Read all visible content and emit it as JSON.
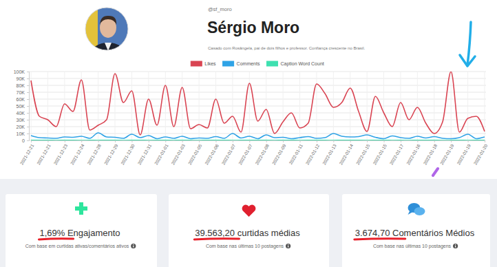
{
  "profile": {
    "handle": "@sf_moro",
    "name": "Sérgio Moro",
    "bio": "Casado com Rosângela, pai de dois filhos e professor. Confiança crescente no Brasil."
  },
  "chart_data": {
    "type": "line",
    "categories": [
      "2021-12-21",
      null,
      "2021-12-21",
      null,
      "2021-12-23",
      null,
      "2021-12-24",
      null,
      "2021-12-28",
      null,
      "2021-12-29",
      null,
      "2021-12-30",
      null,
      "2021-12-31",
      null,
      "2022-01-01",
      null,
      "2022-01-03",
      null,
      "2022-01-05",
      null,
      "2022-01-06",
      null,
      "2022-01-07",
      null,
      "2022-01-07",
      null,
      "2022-01-08",
      null,
      "2022-01-09",
      null,
      "2022-01-11",
      null,
      "2022-01-12",
      null,
      "2022-01-13",
      null,
      "2022-01-14",
      null,
      "2022-01-15",
      null,
      "2022-01-15",
      null,
      "2022-01-17",
      null,
      "2022-01-16",
      null,
      "2022-01-18",
      null,
      "2022-01-19",
      null,
      "2022-01-19",
      null,
      "2022-01-20"
    ],
    "series": [
      {
        "name": "Likes",
        "color": "#d94452",
        "values": [
          87000,
          35000,
          30000,
          20000,
          53000,
          42000,
          88000,
          15000,
          22000,
          30000,
          97000,
          55000,
          72000,
          8000,
          60000,
          22000,
          80000,
          20000,
          77000,
          17000,
          23000,
          18000,
          60000,
          25000,
          35000,
          12000,
          83000,
          28000,
          45000,
          10000,
          27000,
          40000,
          18000,
          25000,
          82000,
          68000,
          48000,
          55000,
          76000,
          42000,
          13000,
          64000,
          40000,
          20000,
          55000,
          30000,
          48000,
          25000,
          10000,
          27000,
          100000,
          12000,
          32000,
          35000,
          13000
        ]
      },
      {
        "name": "Comments",
        "color": "#2fa3e6",
        "values": [
          7000,
          4000,
          3500,
          3000,
          5000,
          4500,
          6000,
          3000,
          11000,
          5000,
          4500,
          3000,
          9000,
          4000,
          7000,
          2500,
          5000,
          3000,
          6000,
          2500,
          3500,
          3000,
          5500,
          3000,
          10000,
          3500,
          6000,
          2500,
          8000,
          4000,
          4500,
          2500,
          4000,
          5500,
          3000,
          4000,
          10000,
          6000,
          5000,
          5500,
          8000,
          4500,
          2500,
          6500,
          4000,
          3000,
          6000,
          3500,
          5500,
          3000,
          2500,
          4000,
          9000,
          2500,
          5000
        ]
      },
      {
        "name": "Caption Word Count",
        "color": "#3ee0b0",
        "values": [
          120,
          80,
          150,
          60,
          200,
          90,
          40,
          110,
          70,
          180,
          130,
          60,
          90,
          150,
          50,
          100,
          210,
          70,
          140,
          80,
          60,
          120,
          90,
          170,
          40,
          110,
          80,
          130,
          100,
          60,
          150,
          90,
          70,
          120,
          200,
          80,
          50,
          140,
          110,
          90,
          60,
          130,
          180,
          70,
          100,
          40,
          120,
          90,
          150,
          60,
          80,
          110,
          70,
          130,
          90
        ]
      }
    ],
    "ylim": [
      0,
      100000
    ],
    "yticks": [
      0,
      {
        "value": 10000,
        "label": "10K"
      },
      {
        "value": 20000,
        "label": "20K"
      },
      {
        "value": 30000,
        "label": "30K"
      },
      {
        "value": 40000,
        "label": "40K"
      },
      {
        "value": 50000,
        "label": "50K"
      },
      {
        "value": 60000,
        "label": "60K"
      },
      {
        "value": 70000,
        "label": "70K"
      },
      {
        "value": 80000,
        "label": "80K"
      },
      {
        "value": 90000,
        "label": "90K"
      },
      {
        "value": 100000,
        "label": "100K"
      }
    ],
    "grid": true,
    "legend": "top"
  },
  "cards": [
    {
      "title": "1,69% Engajamento",
      "note": "Com base em curtidas ativas/comentários ativos"
    },
    {
      "title": "39.563,20 curtidas médias",
      "note": "Com base nas últimas 10 postagens"
    },
    {
      "title": "3.674,70 Comentários Médios",
      "note": "Com base nas últimas 10 postagens"
    }
  ]
}
